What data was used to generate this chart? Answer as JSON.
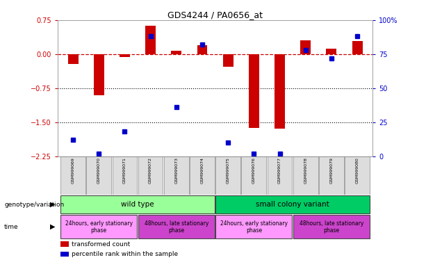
{
  "title": "GDS4244 / PA0656_at",
  "samples": [
    "GSM999069",
    "GSM999070",
    "GSM999071",
    "GSM999072",
    "GSM999073",
    "GSM999074",
    "GSM999075",
    "GSM999076",
    "GSM999077",
    "GSM999078",
    "GSM999079",
    "GSM999080"
  ],
  "red_values": [
    -0.22,
    -0.9,
    -0.07,
    0.63,
    0.08,
    0.2,
    -0.28,
    -1.62,
    -1.65,
    0.3,
    0.12,
    0.28
  ],
  "blue_values_pct": [
    12,
    2,
    18,
    88,
    36,
    82,
    10,
    2,
    2,
    78,
    72,
    88
  ],
  "ylim_left": [
    -2.25,
    0.75
  ],
  "ylim_right": [
    0,
    100
  ],
  "yticks_left": [
    0.75,
    0,
    -0.75,
    -1.5,
    -2.25
  ],
  "yticks_right": [
    100,
    75,
    50,
    25,
    0
  ],
  "hlines": [
    -0.75,
    -1.5
  ],
  "red_color": "#CC0000",
  "blue_color": "#0000CC",
  "dashed_color": "#CC0000",
  "grid_color": "#000000",
  "plot_bg": "#FFFFFF",
  "tick_label_color_left": "#CC0000",
  "tick_label_color_right": "#0000CC",
  "bar_width": 0.4,
  "genotype_row": {
    "groups": [
      {
        "label": "wild type",
        "start": 0,
        "end": 5,
        "color": "#99FF99"
      },
      {
        "label": "small colony variant",
        "start": 6,
        "end": 11,
        "color": "#00CC66"
      }
    ]
  },
  "time_row": {
    "groups": [
      {
        "label": "24hours, early stationary\nphase",
        "start": 0,
        "end": 2,
        "color": "#FF99FF"
      },
      {
        "label": "48hours, late stationary\nphase",
        "start": 3,
        "end": 5,
        "color": "#CC44CC"
      },
      {
        "label": "24hours, early stationary\nphase",
        "start": 6,
        "end": 8,
        "color": "#FF99FF"
      },
      {
        "label": "48hours, late stationary\nphase",
        "start": 9,
        "end": 11,
        "color": "#CC44CC"
      }
    ]
  },
  "legend_items": [
    {
      "color": "#CC0000",
      "label": "transformed count"
    },
    {
      "color": "#0000CC",
      "label": "percentile rank within the sample"
    }
  ]
}
